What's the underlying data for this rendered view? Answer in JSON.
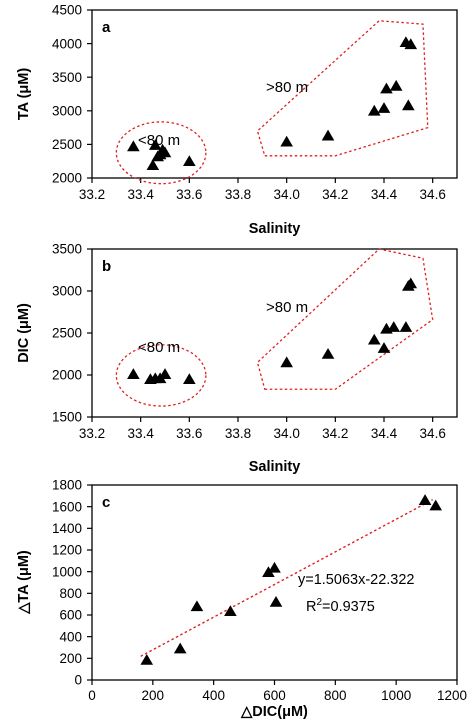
{
  "chart_data": [
    {
      "type": "scatter",
      "panel_label": "a",
      "xlabel": "Salinity",
      "ylabel": "TA (μM)",
      "xlim": [
        33.2,
        34.7
      ],
      "ylim": [
        2000,
        4500
      ],
      "xticks": [
        "33.2",
        "33.4",
        "33.6",
        "33.8",
        "34.0",
        "34.2",
        "34.4",
        "34.6"
      ],
      "yticks": [
        "2000",
        "2500",
        "3000",
        "3500",
        "4000",
        "4500"
      ],
      "series": [
        {
          "x": [
            33.37,
            33.45,
            33.46,
            33.47,
            33.48,
            33.49,
            33.5,
            33.6,
            34.0,
            34.17,
            34.36,
            34.4,
            34.41,
            34.45,
            34.49,
            34.5,
            34.51
          ],
          "y": [
            2470,
            2190,
            2490,
            2320,
            2350,
            2420,
            2380,
            2250,
            2540,
            2630,
            3000,
            3040,
            3330,
            3370,
            4020,
            3080,
            3990
          ]
        }
      ],
      "annotations": [
        {
          "text": "<80 m",
          "x": 33.48,
          "y": 2800
        },
        {
          "text": ">80 m",
          "x": 33.92,
          "y": 3280
        }
      ],
      "groups": [
        {
          "shape": "ellipse",
          "cx": 33.484,
          "cy": 2375,
          "rx": 0.184,
          "ry": 460
        },
        {
          "shape": "polygon",
          "points": [
            [
              33.91,
              2330
            ],
            [
              34.2,
              2330
            ],
            [
              34.58,
              2750
            ],
            [
              34.56,
              4290
            ],
            [
              34.38,
              4340
            ],
            [
              33.88,
              2700
            ]
          ]
        }
      ],
      "grid": false,
      "legend": "none"
    },
    {
      "type": "scatter",
      "panel_label": "b",
      "xlabel": "Salinity",
      "ylabel": "DIC (μM)",
      "xlim": [
        33.2,
        34.7
      ],
      "ylim": [
        1500,
        3500
      ],
      "xticks": [
        "33.2",
        "33.4",
        "33.6",
        "33.8",
        "34.0",
        "34.2",
        "34.4",
        "34.6"
      ],
      "yticks": [
        "1500",
        "2000",
        "2500",
        "3000",
        "3500"
      ],
      "series": [
        {
          "x": [
            33.37,
            33.44,
            33.46,
            33.48,
            33.5,
            33.6,
            34.0,
            34.17,
            34.36,
            34.4,
            34.41,
            34.44,
            34.49,
            34.5,
            34.51
          ],
          "y": [
            2010,
            1950,
            1960,
            1960,
            2010,
            1950,
            2150,
            2250,
            2420,
            2320,
            2550,
            2570,
            2570,
            3060,
            3090
          ]
        }
      ],
      "annotations": [
        {
          "text": "<80 m",
          "x": 33.48,
          "y": 2280
        },
        {
          "text": ">80 m",
          "x": 33.92,
          "y": 2760
        }
      ],
      "groups": [
        {
          "shape": "ellipse",
          "cx": 33.484,
          "cy": 1995,
          "rx": 0.184,
          "ry": 365
        },
        {
          "shape": "polygon",
          "points": [
            [
              33.91,
              1830
            ],
            [
              34.2,
              1830
            ],
            [
              34.6,
              2660
            ],
            [
              34.56,
              3390
            ],
            [
              34.38,
              3500
            ],
            [
              33.88,
              2150
            ]
          ]
        }
      ],
      "grid": false,
      "legend": "none"
    },
    {
      "type": "scatter",
      "panel_label": "c",
      "xlabel": "△DIC(μM)",
      "ylabel": "△TA (μM)",
      "xlim": [
        0,
        1200
      ],
      "ylim": [
        0,
        1800
      ],
      "xticks": [
        "0",
        "200",
        "400",
        "600",
        "800",
        "1000",
        "1200"
      ],
      "yticks": [
        "0",
        "200",
        "400",
        "600",
        "800",
        "1000",
        "1200",
        "1400",
        "1600",
        "1800"
      ],
      "series": [
        {
          "x": [
            180,
            290,
            345,
            455,
            580,
            600,
            605,
            1095,
            1130
          ],
          "y": [
            185,
            290,
            680,
            635,
            995,
            1035,
            720,
            1660,
            1610
          ]
        }
      ],
      "trendline": {
        "slope": 1.5063,
        "intercept": -22.322,
        "x_range": [
          160,
          1120
        ]
      },
      "equation": "y=1.5063x-22.322",
      "r2_prefix": "R",
      "r2_sup": "2",
      "r2_value": "=0.9375",
      "grid": false,
      "legend": "none"
    }
  ],
  "colors": {
    "marker": "#000000",
    "group_outline": "#e02020",
    "trendline": "#e02020",
    "axis": "#000000"
  }
}
